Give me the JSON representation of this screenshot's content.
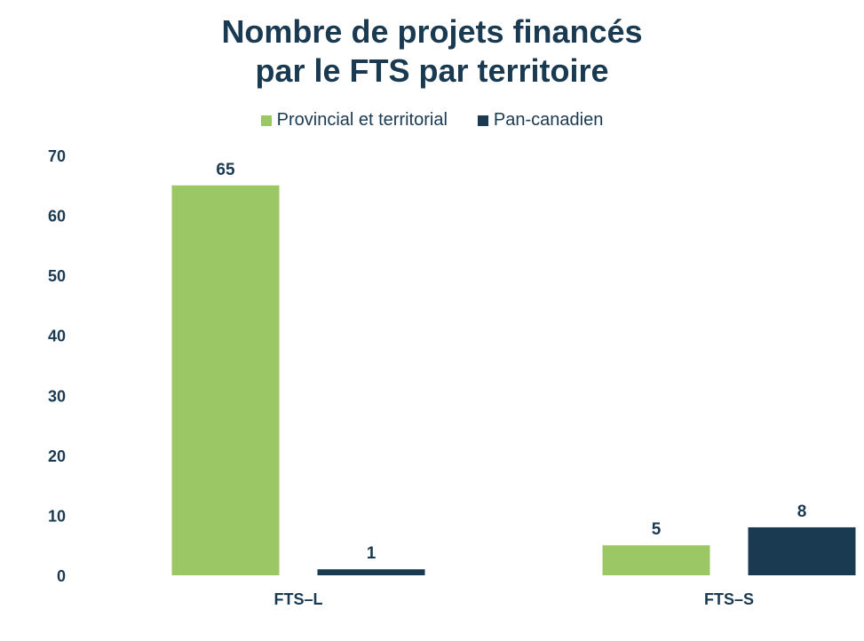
{
  "chart_data": {
    "type": "bar",
    "title_lines": [
      "Nombre de projets financés",
      "par le FTS par territoire"
    ],
    "categories": [
      "FTS–L",
      "FTS–S"
    ],
    "series": [
      {
        "name": "Provincial et territorial",
        "color": "#9bc765",
        "values": [
          65,
          5
        ]
      },
      {
        "name": "Pan-canadien",
        "color": "#1a3a52",
        "values": [
          1,
          8
        ]
      }
    ],
    "ylim": [
      0,
      70
    ],
    "yticks": [
      0,
      10,
      20,
      30,
      40,
      50,
      60,
      70
    ],
    "grid": false,
    "legend_position": "top-center"
  }
}
